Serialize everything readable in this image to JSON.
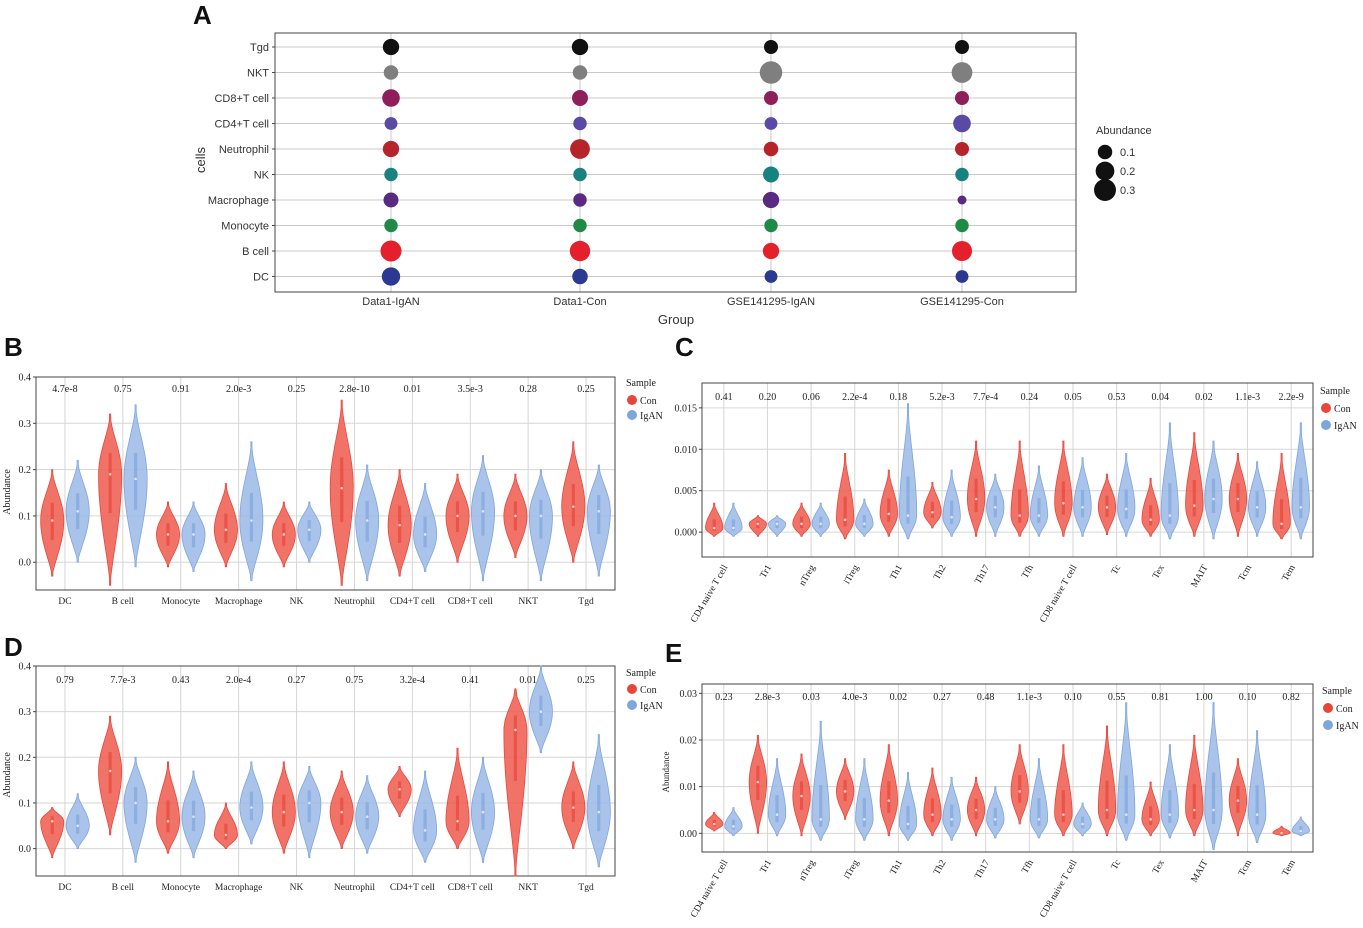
{
  "colors": {
    "con": "#e8463b",
    "igan": "#7fa6dc",
    "conFill": "#ee5a4e",
    "iganFill": "#9ab9e6"
  },
  "panelA": {
    "label": "A",
    "ylabel": "cells",
    "xlabel": "Group",
    "legend_title": "Abundance",
    "legend_items": [
      "0.1",
      "0.2",
      "0.3"
    ],
    "legend_values": [
      0.1,
      0.2,
      0.3
    ],
    "groups": [
      "Data1-IgAN",
      "Data1-Con",
      "GSE141295-IgAN",
      "GSE141295-Con"
    ],
    "cells": [
      "Tgd",
      "NKT",
      "CD8+T cell",
      "CD4+T cell",
      "Neutrophil",
      "NK",
      "Macrophage",
      "Monocyte",
      "B cell",
      "DC"
    ],
    "cell_colors": [
      "#111111",
      "#7f7f7f",
      "#8e1f5b",
      "#5a4aa6",
      "#b5242b",
      "#17827f",
      "#5a2a82",
      "#1f8a45",
      "#e4202c",
      "#2b3990"
    ],
    "abundance": [
      [
        0.14,
        0.14,
        0.09,
        0.09
      ],
      [
        0.1,
        0.1,
        0.32,
        0.26
      ],
      [
        0.17,
        0.13,
        0.09,
        0.09
      ],
      [
        0.07,
        0.08,
        0.07,
        0.17
      ],
      [
        0.14,
        0.23,
        0.1,
        0.09
      ],
      [
        0.08,
        0.08,
        0.13,
        0.08
      ],
      [
        0.11,
        0.08,
        0.14,
        0.02
      ],
      [
        0.08,
        0.08,
        0.08,
        0.08
      ],
      [
        0.27,
        0.25,
        0.14,
        0.24
      ],
      [
        0.19,
        0.12,
        0.07,
        0.07
      ]
    ]
  },
  "panelB": {
    "label": "B",
    "ylabel": "Abundance",
    "legend_title": "Sample",
    "legend": [
      "Con",
      "IgAN"
    ],
    "categories": [
      "DC",
      "B cell",
      "Monocyte",
      "Macrophage",
      "NK",
      "Neutrophil",
      "CD4+T cell",
      "CD8+T cell",
      "NKT",
      "Tgd"
    ],
    "pvalues": [
      "4.7e-8",
      "0.75",
      "0.91",
      "2.0e-3",
      "0.25",
      "2.8e-10",
      "0.01",
      "3.5e-3",
      "0.28",
      "0.25"
    ],
    "yticks": [
      "0.0",
      "0.1",
      "0.2",
      "0.3",
      "0.4"
    ],
    "ylim": [
      -0.06,
      0.4
    ],
    "con": [
      {
        "lo": -0.03,
        "hi": 0.2,
        "med": 0.09
      },
      {
        "lo": -0.05,
        "hi": 0.32,
        "med": 0.19
      },
      {
        "lo": -0.01,
        "hi": 0.13,
        "med": 0.06
      },
      {
        "lo": -0.01,
        "hi": 0.17,
        "med": 0.07
      },
      {
        "lo": -0.01,
        "hi": 0.13,
        "med": 0.06
      },
      {
        "lo": -0.05,
        "hi": 0.35,
        "med": 0.16
      },
      {
        "lo": -0.03,
        "hi": 0.2,
        "med": 0.08
      },
      {
        "lo": 0.0,
        "hi": 0.19,
        "med": 0.1
      },
      {
        "lo": 0.01,
        "hi": 0.19,
        "med": 0.1
      },
      {
        "lo": 0.0,
        "hi": 0.26,
        "med": 0.12
      }
    ],
    "igan": [
      {
        "lo": 0.0,
        "hi": 0.22,
        "med": 0.11
      },
      {
        "lo": -0.01,
        "hi": 0.34,
        "med": 0.18
      },
      {
        "lo": -0.02,
        "hi": 0.13,
        "med": 0.06
      },
      {
        "lo": -0.04,
        "hi": 0.26,
        "med": 0.09
      },
      {
        "lo": 0.0,
        "hi": 0.13,
        "med": 0.07
      },
      {
        "lo": -0.04,
        "hi": 0.21,
        "med": 0.09
      },
      {
        "lo": -0.02,
        "hi": 0.17,
        "med": 0.06
      },
      {
        "lo": -0.04,
        "hi": 0.23,
        "med": 0.11
      },
      {
        "lo": -0.04,
        "hi": 0.2,
        "med": 0.1
      },
      {
        "lo": -0.03,
        "hi": 0.21,
        "med": 0.11
      }
    ]
  },
  "panelC": {
    "label": "C",
    "legend_title": "Sample",
    "legend": [
      "Con",
      "IgAN"
    ],
    "categories": [
      "CD4 naive T cell",
      "Tr1",
      "nTreg",
      "iTreg",
      "Th1",
      "Th2",
      "Th17",
      "Tfh",
      "CD8 naive T cell",
      "Tc",
      "Tex",
      "MAIT",
      "Tcm",
      "Tem"
    ],
    "pvalues": [
      "0.41",
      "0.20",
      "0.06",
      "2.2e-4",
      "0.18",
      "5.2e-3",
      "7.7e-4",
      "0.24",
      "0.05",
      "0.53",
      "0.04",
      "0.02",
      "1.1e-3",
      "2.2e-9"
    ],
    "yticks": [
      "0.000",
      "0.005",
      "0.010",
      "0.015"
    ],
    "ylim": [
      -0.003,
      0.018
    ],
    "con": [
      {
        "lo": -0.0005,
        "hi": 0.0035,
        "med": 0.0005
      },
      {
        "lo": -0.0005,
        "hi": 0.002,
        "med": 0.001
      },
      {
        "lo": -0.0005,
        "hi": 0.0035,
        "med": 0.001
      },
      {
        "lo": -0.0008,
        "hi": 0.0095,
        "med": 0.0015
      },
      {
        "lo": -0.0005,
        "hi": 0.0075,
        "med": 0.0022
      },
      {
        "lo": 0.0005,
        "hi": 0.006,
        "med": 0.0024
      },
      {
        "lo": -0.0005,
        "hi": 0.011,
        "med": 0.004
      },
      {
        "lo": -0.0005,
        "hi": 0.011,
        "med": 0.002
      },
      {
        "lo": -0.0005,
        "hi": 0.011,
        "med": 0.0035
      },
      {
        "lo": -0.0003,
        "hi": 0.007,
        "med": 0.003
      },
      {
        "lo": -0.0005,
        "hi": 0.0065,
        "med": 0.0015
      },
      {
        "lo": -0.0005,
        "hi": 0.012,
        "med": 0.0032
      },
      {
        "lo": -0.0005,
        "hi": 0.0095,
        "med": 0.004
      },
      {
        "lo": -0.0008,
        "hi": 0.0095,
        "med": 0.001
      }
    ],
    "igan": [
      {
        "lo": -0.0005,
        "hi": 0.0035,
        "med": 0.0005
      },
      {
        "lo": -0.0005,
        "hi": 0.002,
        "med": 0.001
      },
      {
        "lo": -0.0005,
        "hi": 0.0035,
        "med": 0.001
      },
      {
        "lo": -0.0005,
        "hi": 0.004,
        "med": 0.001
      },
      {
        "lo": -0.0008,
        "hi": 0.0155,
        "med": 0.002
      },
      {
        "lo": -0.0005,
        "hi": 0.0075,
        "med": 0.0018
      },
      {
        "lo": -0.0005,
        "hi": 0.007,
        "med": 0.003
      },
      {
        "lo": -0.0005,
        "hi": 0.008,
        "med": 0.002
      },
      {
        "lo": -0.0005,
        "hi": 0.009,
        "med": 0.003
      },
      {
        "lo": -0.0005,
        "hi": 0.0095,
        "med": 0.0028
      },
      {
        "lo": -0.0008,
        "hi": 0.0132,
        "med": 0.002
      },
      {
        "lo": -0.0008,
        "hi": 0.011,
        "med": 0.004
      },
      {
        "lo": -0.0005,
        "hi": 0.0085,
        "med": 0.003
      },
      {
        "lo": -0.0008,
        "hi": 0.0132,
        "med": 0.003
      }
    ]
  },
  "panelD": {
    "label": "D",
    "ylabel": "Abundance",
    "legend_title": "Sample",
    "legend": [
      "Con",
      "IgAN"
    ],
    "categories": [
      "DC",
      "B cell",
      "Monocyte",
      "Macrophage",
      "NK",
      "Neutrophil",
      "CD4+T cell",
      "CD8+T cell",
      "NKT",
      "Tgd"
    ],
    "pvalues": [
      "0.79",
      "7.7e-3",
      "0.43",
      "2.0e-4",
      "0.27",
      "0.75",
      "3.2e-4",
      "0.41",
      "0.01",
      "0.25"
    ],
    "yticks": [
      "0.0",
      "0.1",
      "0.2",
      "0.3",
      "0.4"
    ],
    "ylim": [
      -0.06,
      0.4
    ],
    "con": [
      {
        "lo": -0.02,
        "hi": 0.09,
        "med": 0.06
      },
      {
        "lo": 0.03,
        "hi": 0.29,
        "med": 0.17
      },
      {
        "lo": -0.01,
        "hi": 0.19,
        "med": 0.06
      },
      {
        "lo": 0.0,
        "hi": 0.1,
        "med": 0.03
      },
      {
        "lo": -0.01,
        "hi": 0.19,
        "med": 0.08
      },
      {
        "lo": 0.0,
        "hi": 0.17,
        "med": 0.08
      },
      {
        "lo": 0.07,
        "hi": 0.18,
        "med": 0.13
      },
      {
        "lo": 0.0,
        "hi": 0.22,
        "med": 0.06
      },
      {
        "lo": -0.06,
        "hi": 0.35,
        "med": 0.26
      },
      {
        "lo": 0.0,
        "hi": 0.19,
        "med": 0.09
      }
    ],
    "igan": [
      {
        "lo": 0.0,
        "hi": 0.12,
        "med": 0.05
      },
      {
        "lo": -0.03,
        "hi": 0.2,
        "med": 0.1
      },
      {
        "lo": -0.02,
        "hi": 0.17,
        "med": 0.07
      },
      {
        "lo": 0.01,
        "hi": 0.19,
        "med": 0.09
      },
      {
        "lo": -0.02,
        "hi": 0.18,
        "med": 0.1
      },
      {
        "lo": -0.01,
        "hi": 0.16,
        "med": 0.07
      },
      {
        "lo": -0.03,
        "hi": 0.17,
        "med": 0.04
      },
      {
        "lo": -0.03,
        "hi": 0.2,
        "med": 0.08
      },
      {
        "lo": 0.21,
        "hi": 0.4,
        "med": 0.3
      },
      {
        "lo": -0.04,
        "hi": 0.25,
        "med": 0.08
      }
    ]
  },
  "panelE": {
    "label": "E",
    "ylabel": "Abundance",
    "legend_title": "Sample",
    "legend": [
      "Con",
      "IgAN"
    ],
    "categories": [
      "CD4 naive T cell",
      "Tr1",
      "nTreg",
      "iTreg",
      "Th1",
      "Th2",
      "Th17",
      "Tfh",
      "CD8 naive T cell",
      "Tc",
      "Tex",
      "MAIT",
      "Tcm",
      "Tem"
    ],
    "pvalues": [
      "0.23",
      "2.8e-3",
      "0.03",
      "4.0e-3",
      "0.02",
      "0.27",
      "0.48",
      "1.1e-3",
      "0.10",
      "0.55",
      "0.81",
      "1.00",
      "0.10",
      "0.82"
    ],
    "yticks": [
      "0.00",
      "0.01",
      "0.02",
      "0.03"
    ],
    "ylim": [
      -0.004,
      0.032
    ],
    "con": [
      {
        "lo": 0.0005,
        "hi": 0.0045,
        "med": 0.002
      },
      {
        "lo": 0.0,
        "hi": 0.021,
        "med": 0.011
      },
      {
        "lo": -0.0005,
        "hi": 0.017,
        "med": 0.008
      },
      {
        "lo": 0.003,
        "hi": 0.016,
        "med": 0.009
      },
      {
        "lo": -0.0005,
        "hi": 0.019,
        "med": 0.007
      },
      {
        "lo": -0.0005,
        "hi": 0.014,
        "med": 0.004
      },
      {
        "lo": -0.0005,
        "hi": 0.012,
        "med": 0.005
      },
      {
        "lo": 0.002,
        "hi": 0.019,
        "med": 0.009
      },
      {
        "lo": -0.0005,
        "hi": 0.019,
        "med": 0.004
      },
      {
        "lo": -0.0005,
        "hi": 0.023,
        "med": 0.005
      },
      {
        "lo": -0.0005,
        "hi": 0.011,
        "med": 0.003
      },
      {
        "lo": -0.0005,
        "hi": 0.021,
        "med": 0.005
      },
      {
        "lo": -0.0005,
        "hi": 0.016,
        "med": 0.007
      },
      {
        "lo": -0.0005,
        "hi": 0.0015,
        "med": 0.0001
      }
    ],
    "igan": [
      {
        "lo": -0.0005,
        "hi": 0.0055,
        "med": 0.0015
      },
      {
        "lo": -0.0005,
        "hi": 0.016,
        "med": 0.004
      },
      {
        "lo": -0.0015,
        "hi": 0.024,
        "med": 0.003
      },
      {
        "lo": -0.0015,
        "hi": 0.016,
        "med": 0.003
      },
      {
        "lo": -0.0015,
        "hi": 0.013,
        "med": 0.002
      },
      {
        "lo": -0.0015,
        "hi": 0.012,
        "med": 0.003
      },
      {
        "lo": -0.001,
        "hi": 0.01,
        "med": 0.003
      },
      {
        "lo": -0.001,
        "hi": 0.016,
        "med": 0.003
      },
      {
        "lo": -0.0005,
        "hi": 0.0065,
        "med": 0.002
      },
      {
        "lo": -0.0015,
        "hi": 0.028,
        "med": 0.004
      },
      {
        "lo": -0.001,
        "hi": 0.019,
        "med": 0.004
      },
      {
        "lo": -0.0035,
        "hi": 0.028,
        "med": 0.005
      },
      {
        "lo": -0.002,
        "hi": 0.022,
        "med": 0.004
      },
      {
        "lo": -0.0005,
        "hi": 0.0035,
        "med": 0.0005
      }
    ]
  },
  "chart_data": [
    {
      "type": "scatter",
      "title": "A",
      "xlabel": "Group",
      "ylabel": "cells",
      "size_legend": "Abundance"
    },
    {
      "type": "violin",
      "title": "B",
      "ylabel": "Abundance",
      "ylim": [
        -0.06,
        0.4
      ]
    },
    {
      "type": "violin",
      "title": "C",
      "ylim": [
        -0.003,
        0.018
      ]
    },
    {
      "type": "violin",
      "title": "D",
      "ylabel": "Abundance",
      "ylim": [
        -0.06,
        0.4
      ]
    },
    {
      "type": "violin",
      "title": "E",
      "ylabel": "Abundance",
      "ylim": [
        -0.004,
        0.032
      ]
    }
  ]
}
